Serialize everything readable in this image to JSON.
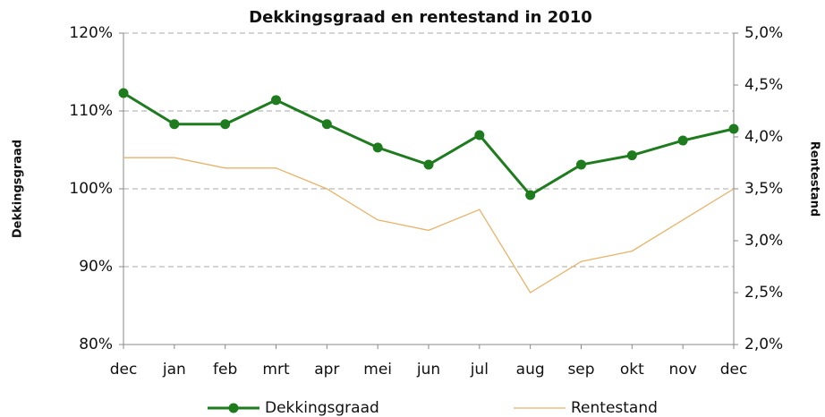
{
  "chart_data": {
    "type": "line",
    "title": "Dekkingsgraad en rentestand in 2010",
    "ylabel": "Dekkingsgraad",
    "y2label": "Rentestand",
    "categories": [
      "dec",
      "jan",
      "feb",
      "mrt",
      "apr",
      "mei",
      "jun",
      "jul",
      "aug",
      "sep",
      "okt",
      "nov",
      "dec"
    ],
    "series": [
      {
        "name": "Dekkingsgraad",
        "color": "#1e7b1e",
        "marker": true,
        "values": [
          112.3,
          108.3,
          108.3,
          111.4,
          108.3,
          105.3,
          103.1,
          106.9,
          99.2,
          103.1,
          104.3,
          106.2,
          107.7
        ]
      },
      {
        "name": "Rentestand",
        "color": "#e8b36a",
        "axis": "y2",
        "marker": false,
        "values": [
          3.8,
          3.8,
          3.7,
          3.7,
          3.5,
          3.2,
          3.1,
          3.3,
          2.5,
          2.8,
          2.9,
          3.2,
          3.5
        ]
      }
    ],
    "ylim": [
      80,
      120
    ],
    "yticks": [
      {
        "value": 80,
        "label": "80%"
      },
      {
        "value": 90,
        "label": "90%"
      },
      {
        "value": 100,
        "label": "100%"
      },
      {
        "value": 110,
        "label": "110%"
      },
      {
        "value": 120,
        "label": "120%"
      }
    ],
    "y2lim": [
      2.0,
      5.0
    ],
    "y2ticks": [
      {
        "value": 2.0,
        "label": "2,0%"
      },
      {
        "value": 2.5,
        "label": "2,5%"
      },
      {
        "value": 3.0,
        "label": "3,0%"
      },
      {
        "value": 3.5,
        "label": "3,5%"
      },
      {
        "value": 4.0,
        "label": "4,0%"
      },
      {
        "value": 4.5,
        "label": "4,5%"
      },
      {
        "value": 5.0,
        "label": "5,0%"
      }
    ],
    "grid": true,
    "legend": "bottom"
  }
}
